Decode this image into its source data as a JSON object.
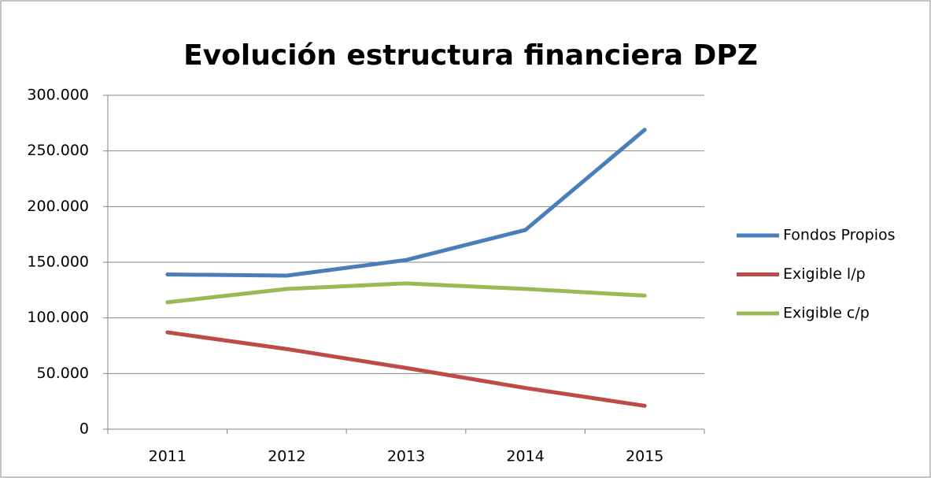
{
  "chart_data": {
    "type": "line",
    "title": "Evolución estructura financiera DPZ",
    "categories": [
      "2011",
      "2012",
      "2013",
      "2014",
      "2015"
    ],
    "series": [
      {
        "name": "Fondos Propios",
        "color": "#4a7ebb",
        "values": [
          139000,
          138000,
          152000,
          179000,
          269000
        ]
      },
      {
        "name": "Exigible l/p",
        "color": "#be4b48",
        "values": [
          87000,
          72000,
          55000,
          37000,
          21000
        ]
      },
      {
        "name": "Exigible c/p",
        "color": "#98b954",
        "values": [
          114000,
          126000,
          131000,
          126000,
          120000
        ]
      }
    ],
    "ylim": [
      0,
      300000
    ],
    "yticks": [
      0,
      {
        "value": 50000,
        "label": "50.000"
      },
      {
        "value": 100000,
        "label": "100.000"
      },
      {
        "value": 150000,
        "label": "150.000"
      },
      {
        "value": 200000,
        "label": "200.000"
      },
      {
        "value": 250000,
        "label": "250.000"
      },
      {
        "value": 300000,
        "label": "300.000"
      }
    ],
    "grid": true,
    "legend": "right"
  }
}
